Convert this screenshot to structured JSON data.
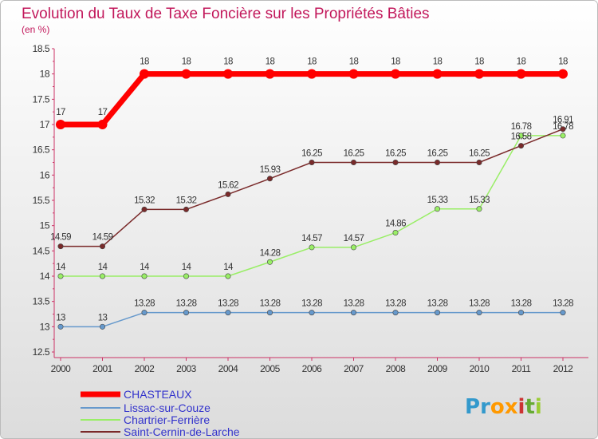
{
  "chart_data": {
    "type": "line",
    "title": "Evolution du Taux de Taxe Foncière sur les Propriétés Bâties",
    "subtitle": "(en %)",
    "categories": [
      "2000",
      "2001",
      "2002",
      "2003",
      "2004",
      "2005",
      "2006",
      "2007",
      "2008",
      "2009",
      "2010",
      "2011",
      "2012"
    ],
    "y_ticks": [
      "18.5",
      "18",
      "17.5",
      "17",
      "16.5",
      "16",
      "15.5",
      "15",
      "14.5",
      "14",
      "13.5",
      "13",
      "12.5"
    ],
    "ylim": [
      12.5,
      18.5
    ],
    "series": [
      {
        "name": "CHASTEAUX",
        "color": "#ff0000",
        "values": [
          17,
          17,
          18,
          18,
          18,
          18,
          18,
          18,
          18,
          18,
          18,
          18,
          18
        ],
        "labels": [
          "17",
          "17",
          "18",
          "18",
          "18",
          "18",
          "18",
          "18",
          "18",
          "18",
          "18",
          "18",
          "18"
        ]
      },
      {
        "name": "Lissac-sur-Couze",
        "color": "#6699cc",
        "values": [
          13,
          13,
          13.28,
          13.28,
          13.28,
          13.28,
          13.28,
          13.28,
          13.28,
          13.28,
          13.28,
          13.28,
          13.28
        ],
        "labels": [
          "13",
          "13",
          "13.28",
          "13.28",
          "13.28",
          "13.28",
          "13.28",
          "13.28",
          "13.28",
          "13.28",
          "13.28",
          "13.28",
          "13.28"
        ]
      },
      {
        "name": "Chartrier-Ferrière",
        "color": "#99ee66",
        "values": [
          14,
          14,
          14,
          14,
          14,
          14.28,
          14.57,
          14.57,
          14.86,
          15.33,
          15.33,
          16.78,
          16.78
        ],
        "labels": [
          "14",
          "14",
          "14",
          "14",
          "14",
          "14.28",
          "14.57",
          "14.57",
          "14.86",
          "15.33",
          "15.33",
          "16.78",
          "16.78"
        ]
      },
      {
        "name": "Saint-Cernin-de-Larche",
        "color": "#7a2a2a",
        "values": [
          14.59,
          14.59,
          15.32,
          15.32,
          15.62,
          15.93,
          16.25,
          16.25,
          16.25,
          16.25,
          16.25,
          16.58,
          16.91
        ],
        "labels": [
          "14.59",
          "14.59",
          "15.32",
          "15.32",
          "15.62",
          "15.93",
          "16.25",
          "16.25",
          "16.25",
          "16.25",
          "16.25",
          "16.58",
          "16.91"
        ]
      }
    ],
    "legend_position": "bottom-left",
    "grid": false
  },
  "logo": {
    "text": "Proxiti",
    "letters": [
      "P",
      "r",
      "o",
      "x",
      "i",
      "t",
      "i"
    ],
    "colors": [
      "#3399cc",
      "#3399cc",
      "#ff9900",
      "#ff9900",
      "#cc3333",
      "#66aa33",
      "#99cc33"
    ]
  }
}
